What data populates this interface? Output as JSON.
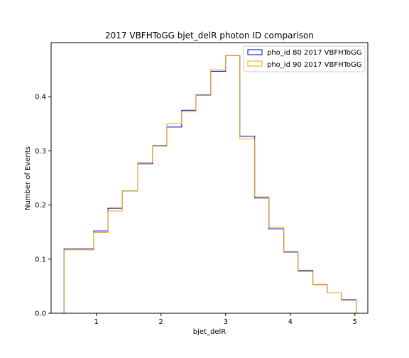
{
  "chart_data": {
    "type": "step",
    "title": "2017 VBFHToGG bjet_delR photon ID comparison",
    "xlabel": "bjet_delR",
    "ylabel": "Number of Events",
    "xlim": [
      0.3,
      5.2
    ],
    "ylim": [
      0,
      0.5
    ],
    "xticks": [
      1,
      2,
      3,
      4,
      5
    ],
    "yticks": [
      0.0,
      0.1,
      0.2,
      0.3,
      0.4
    ],
    "ytick_labels": [
      "0.0",
      "0.1",
      "0.2",
      "0.3",
      "0.4"
    ],
    "grid": false,
    "legend_position": "top-right",
    "bin_edges": [
      0.5,
      0.96,
      1.18,
      1.4,
      1.64,
      1.87,
      2.09,
      2.32,
      2.54,
      2.77,
      3.0,
      3.22,
      3.45,
      3.67,
      3.9,
      4.12,
      4.35,
      4.57,
      4.79,
      5.02
    ],
    "series": [
      {
        "name": "pho_id 80 2017 VBFHToGG",
        "color": "#0000cc",
        "values": [
          0.119,
          0.152,
          0.194,
          0.226,
          0.276,
          0.309,
          0.344,
          0.375,
          0.403,
          0.447,
          0.476,
          0.327,
          0.213,
          0.156,
          0.113,
          0.079,
          0.053,
          0.038,
          0.025
        ]
      },
      {
        "name": "pho_id 90 2017 VBFHToGG",
        "color": "#f0a500",
        "values": [
          0.117,
          0.149,
          0.189,
          0.226,
          0.279,
          0.31,
          0.35,
          0.372,
          0.404,
          0.45,
          0.476,
          0.322,
          0.215,
          0.159,
          0.114,
          0.077,
          0.053,
          0.038,
          0.024
        ]
      }
    ]
  }
}
